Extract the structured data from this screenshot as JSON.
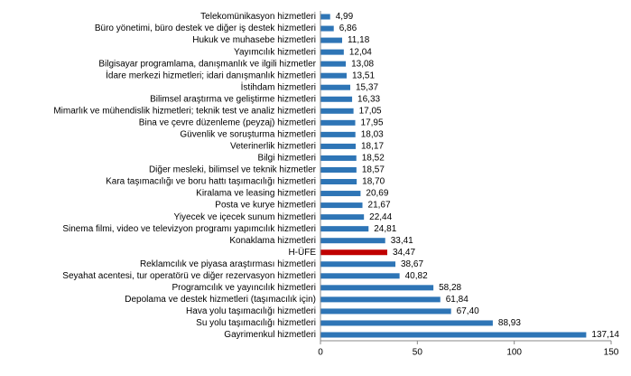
{
  "chart_data": {
    "type": "bar",
    "orientation": "horizontal",
    "categories": [
      "Telekomünikasyon hizmetleri",
      "Büro yönetimi, büro destek ve diğer iş destek hizmetleri",
      "Hukuk ve muhasebe hizmetleri",
      "Yayımcılık hizmetleri",
      "Bilgisayar programlama, danışmanlık ve ilgili hizmetler",
      "İdare merkezi hizmetleri; idari danışmanlık hizmetleri",
      "İstihdam hizmetleri",
      "Bilimsel araştırma ve geliştirme hizmetleri",
      "Mimarlık ve mühendislik hizmetleri; teknik test ve analiz hizmetleri",
      "Bina ve çevre düzenleme (peyzaj) hizmetleri",
      "Güvenlik ve soruşturma hizmetleri",
      "Veterinerlik hizmetleri",
      "Bilgi hizmetleri",
      "Diğer mesleki, bilimsel ve teknik hizmetler",
      "Kara taşımacılığı ve boru hattı taşımacılığı hizmetleri",
      "Kiralama ve leasing hizmetleri",
      "Posta ve kurye hizmetleri",
      "Yiyecek ve içecek sunum hizmetleri",
      "Sinema filmi, video ve televizyon programı yapımcılık hizmetleri",
      "Konaklama hizmetleri",
      "H-ÜFE",
      "Reklamcılık ve piyasa araştırması hizmetleri",
      "Seyahat acentesi, tur operatörü ve diğer rezervasyon hizmetleri",
      "Programcılık ve yayıncılık hizmetleri",
      "Depolama ve destek hizmetleri (taşımacılık için)",
      "Hava yolu taşımacılığı hizmetleri",
      "Su yolu taşımacılığı hizmetleri",
      "Gayrimenkul hizmetleri"
    ],
    "values": [
      4.99,
      6.86,
      11.18,
      12.04,
      13.08,
      13.51,
      15.37,
      16.33,
      17.05,
      17.95,
      18.03,
      18.17,
      18.52,
      18.57,
      18.7,
      20.69,
      21.67,
      22.44,
      24.81,
      33.41,
      34.47,
      38.67,
      40.82,
      58.28,
      61.84,
      67.4,
      88.93,
      137.14
    ],
    "value_labels": [
      "4,99",
      "6,86",
      "11,18",
      "12,04",
      "13,08",
      "13,51",
      "15,37",
      "16,33",
      "17,05",
      "17,95",
      "18,03",
      "18,17",
      "18,52",
      "18,57",
      "18,70",
      "20,69",
      "21,67",
      "22,44",
      "24,81",
      "33,41",
      "34,47",
      "38,67",
      "40,82",
      "58,28",
      "61,84",
      "67,40",
      "88,93",
      "137,14"
    ],
    "colors": [
      "#2e75b6",
      "#2e75b6",
      "#2e75b6",
      "#2e75b6",
      "#2e75b6",
      "#2e75b6",
      "#2e75b6",
      "#2e75b6",
      "#2e75b6",
      "#2e75b6",
      "#2e75b6",
      "#2e75b6",
      "#2e75b6",
      "#2e75b6",
      "#2e75b6",
      "#2e75b6",
      "#2e75b6",
      "#2e75b6",
      "#2e75b6",
      "#2e75b6",
      "#c00000",
      "#2e75b6",
      "#2e75b6",
      "#2e75b6",
      "#2e75b6",
      "#2e75b6",
      "#2e75b6",
      "#2e75b6"
    ],
    "xlim": [
      0,
      150
    ],
    "xticks": [
      0,
      50,
      100,
      150
    ],
    "grid": false
  }
}
